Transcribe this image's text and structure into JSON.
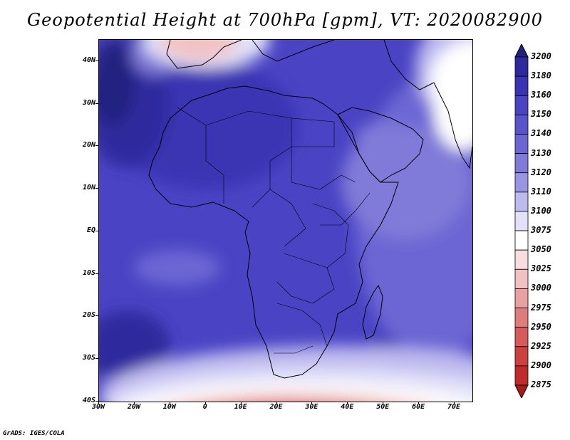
{
  "title": "Geopotential Height at 700hPa [gpm], VT: 2020082900",
  "credit": "GrADS: IGES/COLA",
  "map": {
    "lon_range": [
      -30,
      75
    ],
    "lat_range": [
      -40,
      45
    ],
    "lat_labels": [
      "40N",
      "30N",
      "20N",
      "10N",
      "EQ",
      "10S",
      "20S",
      "30S",
      "40S"
    ],
    "lat_values": [
      40,
      30,
      20,
      10,
      0,
      -10,
      -20,
      -30,
      -40
    ],
    "lon_labels": [
      "30W",
      "20W",
      "10W",
      "0",
      "10E",
      "20E",
      "30E",
      "40E",
      "50E",
      "60E",
      "70E"
    ],
    "lon_values": [
      -30,
      -20,
      -10,
      0,
      10,
      20,
      30,
      40,
      50,
      60,
      70
    ]
  },
  "colorbar": {
    "labels": [
      "3200",
      "3180",
      "3160",
      "3150",
      "3140",
      "3130",
      "3120",
      "3110",
      "3100",
      "3075",
      "3050",
      "3025",
      "3000",
      "2975",
      "2950",
      "2925",
      "2900",
      "2875"
    ],
    "colors": [
      "#242080",
      "#2e2a9e",
      "#3a34b4",
      "#4a44c4",
      "#5a54cc",
      "#6c66d4",
      "#807ad8",
      "#9a95e2",
      "#bdbaee",
      "#e2e1f8",
      "#ffffff",
      "#f8dede",
      "#f2c2c2",
      "#eaa0a0",
      "#e07c7c",
      "#d85a5a",
      "#cc4040",
      "#c02a2a",
      "#a81a1a"
    ]
  }
}
